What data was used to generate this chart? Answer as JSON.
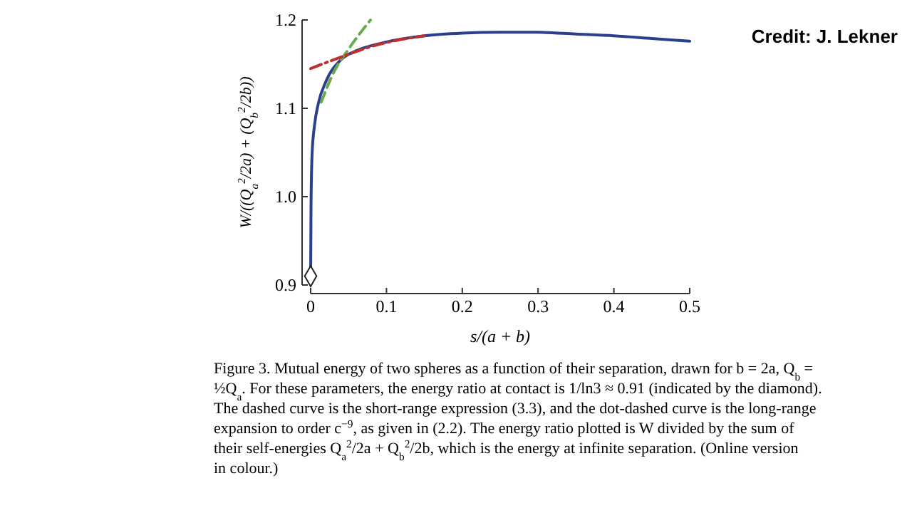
{
  "chart_data": {
    "type": "line",
    "xlabel": "s/(a + b)",
    "ylabel": "W/((Q$_{a}$$^{2}$/2a) + (Q$_{b}$$^{2}$/2b))",
    "xlim": [
      0,
      0.5
    ],
    "xticks": [
      0,
      0.1,
      0.2,
      0.3,
      0.4,
      0.5
    ],
    "ylim": [
      0.9,
      1.2
    ],
    "yticks": [
      {
        "value": 0.9,
        "label": "0.9"
      },
      {
        "value": 1,
        "label": "1.0"
      },
      {
        "value": 1.1,
        "label": "1.1"
      },
      {
        "value": 1.2,
        "label": "1.2"
      }
    ],
    "grid": false,
    "series": [
      {
        "color": "#2b3f8f",
        "line_style": "solid",
        "x": [
          0,
          0.0005,
          0.001,
          0.002,
          0.005,
          0.01,
          0.02,
          0.04,
          0.06,
          0.1,
          0.15,
          0.2,
          0.25,
          0.3,
          0.35,
          0.4,
          0.45,
          0.5
        ],
        "values": [
          0.91,
          0.99,
          1.02,
          1.05,
          1.08,
          1.105,
          1.13,
          1.155,
          1.165,
          1.175,
          1.182,
          1.185,
          1.186,
          1.186,
          1.184,
          1.182,
          1.179,
          1.176
        ]
      },
      {
        "color": "#6aaa4a",
        "line_style": "dashed",
        "x": [
          0.014,
          0.03,
          0.05,
          0.079
        ],
        "values": [
          1.107,
          1.14,
          1.167,
          1.2
        ]
      },
      {
        "color": "#c0302a",
        "line_style": "dashdot",
        "x": [
          0,
          0.04,
          0.08,
          0.12,
          0.15
        ],
        "values": [
          1.145,
          1.158,
          1.17,
          1.178,
          1.182
        ]
      },
      {
        "type": "scatter",
        "color": "#222222",
        "marker": "diamond",
        "x": [
          0
        ],
        "values": [
          0.91
        ]
      }
    ],
    "annotations": [
      "Figure 3. Mutual energy of two spheres as a function of their separation, drawn for b = 2a, Q$_{b}$ = ½Q$_{a}$. For these parameters, the energy ratio at contact is 1/ln3 ≈ 0.91 (indicated by the diamond). The dashed curve is the short-range expression (3.3), and the dot-dashed curve is the long-range expansion to order c$^{−9}$, as given in (2.2). The energy ratio plotted is W divided by the sum of their self-energies Q$_{a}$$^{2}$/2a + Q$_{b}$$^{2}$/2b, which is the energy at infinite separation. (Online version in colour.)",
      "Credit: J. Lekner"
    ]
  }
}
